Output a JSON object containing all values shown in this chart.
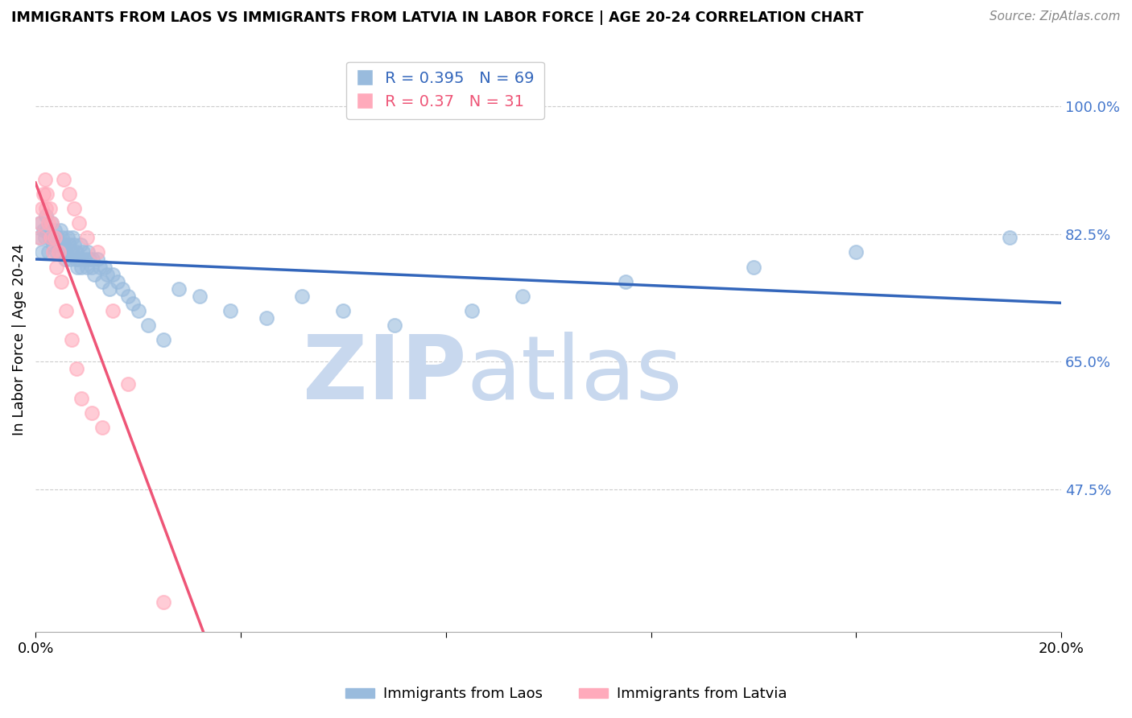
{
  "title": "IMMIGRANTS FROM LAOS VS IMMIGRANTS FROM LATVIA IN LABOR FORCE | AGE 20-24 CORRELATION CHART",
  "source": "Source: ZipAtlas.com",
  "ylabel": "In Labor Force | Age 20-24",
  "yticks": [
    0.475,
    0.65,
    0.825,
    1.0
  ],
  "ytick_labels": [
    "47.5%",
    "65.0%",
    "82.5%",
    "100.0%"
  ],
  "xmin": 0.0,
  "xmax": 0.2,
  "ymin": 0.28,
  "ymax": 1.08,
  "laos_R": 0.395,
  "laos_N": 69,
  "latvia_R": 0.37,
  "latvia_N": 31,
  "laos_color": "#99BBDD",
  "latvia_color": "#FFAABB",
  "laos_line_color": "#3366BB",
  "latvia_line_color": "#EE5577",
  "watermark_zip": "ZIP",
  "watermark_atlas": "atlas",
  "watermark_color": "#C8D8EE",
  "legend_label_laos": "Immigrants from Laos",
  "legend_label_latvia": "Immigrants from Latvia",
  "laos_x": [
    0.0008,
    0.001,
    0.0012,
    0.0015,
    0.0018,
    0.002,
    0.0022,
    0.0025,
    0.0028,
    0.003,
    0.0032,
    0.0035,
    0.0038,
    0.004,
    0.0042,
    0.0045,
    0.0048,
    0.005,
    0.0052,
    0.0055,
    0.0058,
    0.006,
    0.0062,
    0.0065,
    0.0068,
    0.007,
    0.0072,
    0.0075,
    0.0078,
    0.008,
    0.0082,
    0.0085,
    0.0088,
    0.009,
    0.0092,
    0.0095,
    0.01,
    0.0102,
    0.0105,
    0.011,
    0.0112,
    0.0115,
    0.012,
    0.0125,
    0.013,
    0.0135,
    0.014,
    0.0145,
    0.015,
    0.016,
    0.017,
    0.018,
    0.019,
    0.02,
    0.022,
    0.025,
    0.028,
    0.032,
    0.038,
    0.045,
    0.052,
    0.06,
    0.07,
    0.085,
    0.095,
    0.115,
    0.14,
    0.16,
    0.19
  ],
  "laos_y": [
    0.82,
    0.84,
    0.8,
    0.83,
    0.82,
    0.85,
    0.83,
    0.8,
    0.82,
    0.82,
    0.84,
    0.81,
    0.83,
    0.8,
    0.82,
    0.81,
    0.83,
    0.8,
    0.82,
    0.81,
    0.79,
    0.8,
    0.82,
    0.81,
    0.79,
    0.8,
    0.82,
    0.81,
    0.79,
    0.8,
    0.78,
    0.79,
    0.81,
    0.78,
    0.8,
    0.79,
    0.78,
    0.8,
    0.79,
    0.78,
    0.79,
    0.77,
    0.79,
    0.78,
    0.76,
    0.78,
    0.77,
    0.75,
    0.77,
    0.76,
    0.75,
    0.74,
    0.73,
    0.72,
    0.7,
    0.68,
    0.75,
    0.74,
    0.72,
    0.71,
    0.74,
    0.72,
    0.7,
    0.72,
    0.74,
    0.76,
    0.78,
    0.8,
    0.82
  ],
  "latvia_x": [
    0.0008,
    0.001,
    0.0012,
    0.0015,
    0.0018,
    0.002,
    0.0022,
    0.0025,
    0.0028,
    0.003,
    0.0032,
    0.0035,
    0.0038,
    0.004,
    0.0045,
    0.005,
    0.0055,
    0.006,
    0.0065,
    0.007,
    0.0075,
    0.008,
    0.0085,
    0.009,
    0.01,
    0.011,
    0.012,
    0.013,
    0.015,
    0.018,
    0.025
  ],
  "latvia_y": [
    0.82,
    0.84,
    0.86,
    0.88,
    0.9,
    0.86,
    0.88,
    0.84,
    0.86,
    0.82,
    0.84,
    0.8,
    0.82,
    0.78,
    0.8,
    0.76,
    0.9,
    0.72,
    0.88,
    0.68,
    0.86,
    0.64,
    0.84,
    0.6,
    0.82,
    0.58,
    0.8,
    0.56,
    0.72,
    0.62,
    0.32
  ]
}
